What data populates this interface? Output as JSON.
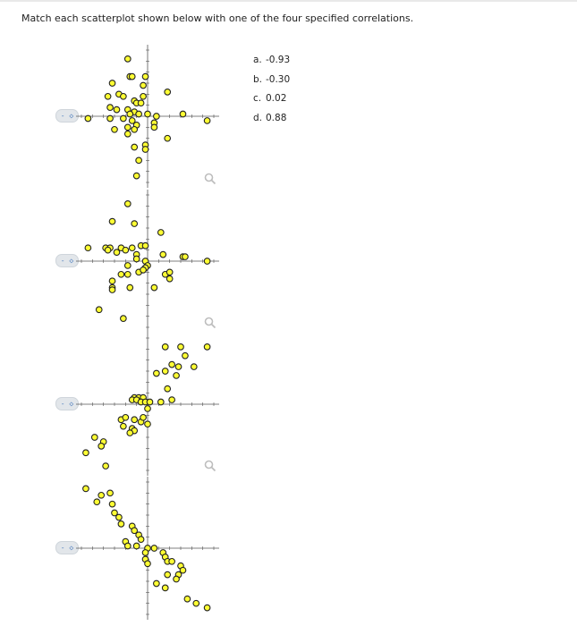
{
  "question": {
    "prompt": "Match each scatterplot shown below with one of the four specified correlations."
  },
  "options": [
    {
      "letter": "a.",
      "value": "-0.93"
    },
    {
      "letter": "b.",
      "value": "-0.30"
    },
    {
      "letter": "c.",
      "value": "0.02"
    },
    {
      "letter": "d.",
      "value": "0.88"
    }
  ],
  "dropdowns": [
    {
      "selected": "- ◇"
    },
    {
      "selected": "- ◇"
    },
    {
      "selected": "- ◇"
    },
    {
      "selected": "- ◇"
    }
  ],
  "colors": {
    "point_fill": "#ffff33",
    "point_stroke": "#222222",
    "axis": "#555555"
  },
  "icons": [
    "magnifier-icon",
    "dropdown-arrows-icon"
  ],
  "chart_data": [
    {
      "type": "scatter",
      "title": "",
      "xlim": [
        -3,
        3
      ],
      "ylim": [
        -3,
        3
      ],
      "grid": false,
      "points": [
        [
          -0.9,
          2.6
        ],
        [
          -0.8,
          1.8
        ],
        [
          -0.7,
          1.8
        ],
        [
          -0.1,
          1.8
        ],
        [
          -1.6,
          1.5
        ],
        [
          -0.2,
          1.4
        ],
        [
          0.9,
          1.1
        ],
        [
          -1.3,
          1.0
        ],
        [
          -1.8,
          0.9
        ],
        [
          -1.1,
          0.9
        ],
        [
          -0.2,
          0.9
        ],
        [
          -0.6,
          0.7
        ],
        [
          -0.5,
          0.6
        ],
        [
          -0.3,
          0.6
        ],
        [
          -1.7,
          0.4
        ],
        [
          -1.4,
          0.3
        ],
        [
          -0.9,
          0.3
        ],
        [
          -0.6,
          0.2
        ],
        [
          -0.8,
          0.1
        ],
        [
          -0.4,
          0.1
        ],
        [
          0.0,
          0.1
        ],
        [
          -2.7,
          -0.1
        ],
        [
          -1.7,
          -0.1
        ],
        [
          -1.1,
          -0.1
        ],
        [
          -0.7,
          -0.2
        ],
        [
          0.4,
          0.0
        ],
        [
          1.6,
          0.1
        ],
        [
          2.7,
          -0.2
        ],
        [
          0.3,
          -0.3
        ],
        [
          -0.5,
          -0.4
        ],
        [
          -0.9,
          -0.5
        ],
        [
          0.3,
          -0.5
        ],
        [
          -1.5,
          -0.6
        ],
        [
          -0.6,
          -0.6
        ],
        [
          -0.9,
          -0.8
        ],
        [
          0.9,
          -1.0
        ],
        [
          -0.1,
          -1.3
        ],
        [
          -0.6,
          -1.4
        ],
        [
          -0.1,
          -1.5
        ],
        [
          -0.4,
          -2.0
        ],
        [
          -0.5,
          -2.7
        ]
      ]
    },
    {
      "type": "scatter",
      "title": "",
      "xlim": [
        -3,
        3
      ],
      "ylim": [
        -3,
        3
      ],
      "grid": false,
      "points": [
        [
          -0.9,
          2.6
        ],
        [
          -1.6,
          1.8
        ],
        [
          -0.6,
          1.7
        ],
        [
          0.6,
          1.3
        ],
        [
          -2.7,
          0.6
        ],
        [
          -1.9,
          0.6
        ],
        [
          -1.7,
          0.6
        ],
        [
          -1.2,
          0.6
        ],
        [
          -0.7,
          0.6
        ],
        [
          -0.3,
          0.7
        ],
        [
          -0.1,
          0.7
        ],
        [
          -1.8,
          0.5
        ],
        [
          -1.4,
          0.4
        ],
        [
          -1.0,
          0.5
        ],
        [
          -0.5,
          0.3
        ],
        [
          0.7,
          0.3
        ],
        [
          1.6,
          0.2
        ],
        [
          1.7,
          0.2
        ],
        [
          -0.5,
          0.1
        ],
        [
          -0.1,
          0.0
        ],
        [
          -0.9,
          -0.2
        ],
        [
          0.0,
          -0.2
        ],
        [
          -0.1,
          -0.3
        ],
        [
          -0.9,
          -0.6
        ],
        [
          -1.2,
          -0.6
        ],
        [
          -0.4,
          -0.5
        ],
        [
          -0.2,
          -0.4
        ],
        [
          0.8,
          -0.6
        ],
        [
          1.0,
          -0.8
        ],
        [
          1.0,
          -0.5
        ],
        [
          -1.6,
          -0.9
        ],
        [
          -1.6,
          -1.2
        ],
        [
          -1.6,
          -1.3
        ],
        [
          -0.8,
          -1.2
        ],
        [
          0.3,
          -1.2
        ],
        [
          -2.2,
          -2.2
        ],
        [
          -1.1,
          -2.6
        ],
        [
          2.7,
          0.0
        ]
      ]
    },
    {
      "type": "scatter",
      "title": "",
      "xlim": [
        -3,
        3
      ],
      "ylim": [
        -3,
        3
      ],
      "grid": false,
      "points": [
        [
          0.8,
          2.6
        ],
        [
          1.5,
          2.6
        ],
        [
          2.7,
          2.6
        ],
        [
          1.7,
          2.2
        ],
        [
          1.1,
          1.8
        ],
        [
          1.4,
          1.7
        ],
        [
          2.1,
          1.7
        ],
        [
          0.4,
          1.4
        ],
        [
          0.8,
          1.5
        ],
        [
          1.3,
          1.3
        ],
        [
          0.9,
          0.7
        ],
        [
          1.1,
          0.2
        ],
        [
          -0.6,
          0.3
        ],
        [
          -0.4,
          0.3
        ],
        [
          -0.2,
          0.3
        ],
        [
          -0.7,
          0.2
        ],
        [
          -0.5,
          0.2
        ],
        [
          -0.3,
          0.1
        ],
        [
          -0.1,
          0.1
        ],
        [
          0.1,
          0.1
        ],
        [
          0.6,
          0.1
        ],
        [
          0.0,
          -0.2
        ],
        [
          -0.6,
          -0.7
        ],
        [
          -1.2,
          -0.7
        ],
        [
          -1.0,
          -0.6
        ],
        [
          -0.3,
          -0.8
        ],
        [
          -0.7,
          -1.1
        ],
        [
          -1.1,
          -1.0
        ],
        [
          -0.6,
          -1.2
        ],
        [
          -0.8,
          -1.3
        ],
        [
          -2.4,
          -1.5
        ],
        [
          -2.0,
          -1.7
        ],
        [
          -2.1,
          -1.9
        ],
        [
          -2.8,
          -2.2
        ],
        [
          -1.9,
          -2.8
        ],
        [
          -0.2,
          -0.6
        ],
        [
          0.0,
          -0.9
        ]
      ]
    },
    {
      "type": "scatter",
      "title": "",
      "xlim": [
        -3,
        3
      ],
      "ylim": [
        -3,
        3
      ],
      "grid": false,
      "points": [
        [
          -2.8,
          2.7
        ],
        [
          -2.1,
          2.4
        ],
        [
          -1.7,
          2.5
        ],
        [
          -2.3,
          2.1
        ],
        [
          -1.6,
          2.0
        ],
        [
          -1.5,
          1.6
        ],
        [
          -1.3,
          1.4
        ],
        [
          -1.2,
          1.1
        ],
        [
          -0.7,
          1.0
        ],
        [
          -0.6,
          0.8
        ],
        [
          -0.4,
          0.6
        ],
        [
          -0.3,
          0.4
        ],
        [
          -1.0,
          0.3
        ],
        [
          -0.9,
          0.1
        ],
        [
          -0.5,
          0.1
        ],
        [
          0.0,
          0.0
        ],
        [
          0.3,
          0.0
        ],
        [
          0.7,
          -0.2
        ],
        [
          0.8,
          -0.4
        ],
        [
          -0.1,
          -0.5
        ],
        [
          0.0,
          -0.7
        ],
        [
          0.9,
          -0.6
        ],
        [
          1.1,
          -0.6
        ],
        [
          1.5,
          -0.8
        ],
        [
          1.6,
          -1.0
        ],
        [
          0.9,
          -1.2
        ],
        [
          1.4,
          -1.2
        ],
        [
          1.3,
          -1.4
        ],
        [
          0.4,
          -1.6
        ],
        [
          0.8,
          -1.8
        ],
        [
          -0.1,
          -0.2
        ],
        [
          1.8,
          -2.3
        ],
        [
          2.2,
          -2.5
        ],
        [
          2.7,
          -2.7
        ]
      ]
    }
  ]
}
